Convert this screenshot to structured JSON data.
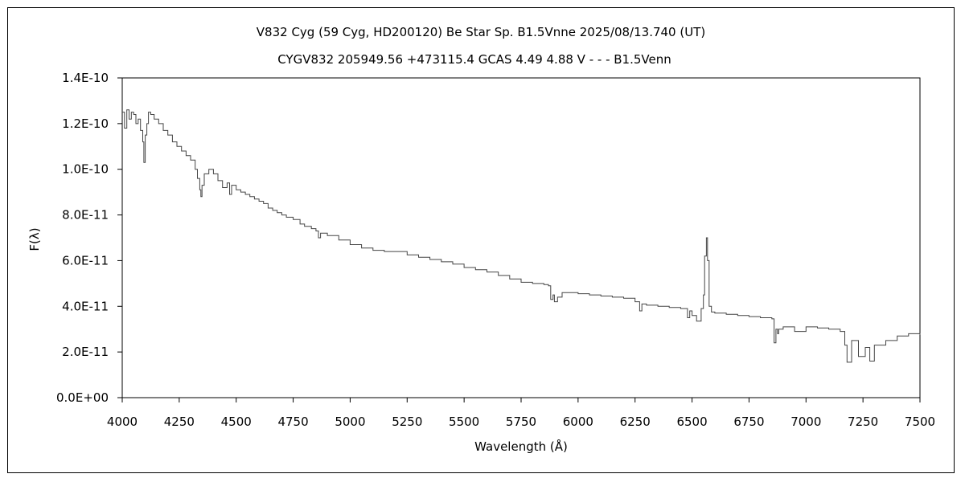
{
  "chart_data": {
    "type": "line",
    "title": "V832 Cyg (59 Cyg, HD200120)    Be Star    Sp. B1.5Vnne    2025/08/13.740 (UT)",
    "subtitle": "CYGV832 205949.56 +473115.4 GCAS 4.49 4.88 V - - - B1.5Venn",
    "xlabel": "Wavelength (Å)",
    "ylabel": "F(λ)",
    "xlim": [
      4000,
      7500
    ],
    "ylim": [
      0,
      1.4e-10
    ],
    "xticks": [
      4000,
      4250,
      4500,
      4750,
      5000,
      5250,
      5500,
      5750,
      6000,
      6250,
      6500,
      6750,
      7000,
      7250,
      7500
    ],
    "xtick_labels": [
      "4000",
      "4250",
      "4500",
      "4750",
      "5000",
      "5250",
      "5500",
      "5750",
      "6000",
      "6250",
      "6500",
      "6750",
      "7000",
      "7250",
      "7500"
    ],
    "yticks": [
      0,
      2e-11,
      4e-11,
      6e-11,
      8e-11,
      1e-10,
      1.2e-10,
      1.4e-10
    ],
    "ytick_labels": [
      "0.0E+00",
      "2.0E-11",
      "4.0E-11",
      "6.0E-11",
      "8.0E-11",
      "1.0E-10",
      "1.2E-10",
      "1.4E-10"
    ],
    "grid": false,
    "series": [
      {
        "color": "#444444",
        "x": [
          4000,
          4010,
          4020,
          4030,
          4040,
          4050,
          4060,
          4070,
          4080,
          4090,
          4095,
          4101,
          4108,
          4115,
          4125,
          4140,
          4160,
          4180,
          4200,
          4220,
          4240,
          4260,
          4280,
          4300,
          4320,
          4330,
          4340,
          4345,
          4350,
          4360,
          4380,
          4400,
          4420,
          4440,
          4460,
          4471,
          4480,
          4500,
          4520,
          4540,
          4560,
          4580,
          4600,
          4620,
          4640,
          4660,
          4680,
          4700,
          4720,
          4750,
          4780,
          4800,
          4830,
          4850,
          4861,
          4870,
          4900,
          4950,
          5000,
          5050,
          5100,
          5150,
          5200,
          5250,
          5300,
          5350,
          5400,
          5450,
          5500,
          5550,
          5600,
          5650,
          5700,
          5750,
          5800,
          5850,
          5870,
          5880,
          5890,
          5896,
          5910,
          5930,
          5950,
          6000,
          6050,
          6100,
          6150,
          6200,
          6250,
          6270,
          6280,
          6300,
          6350,
          6400,
          6450,
          6480,
          6490,
          6500,
          6520,
          6540,
          6550,
          6555,
          6563,
          6568,
          6575,
          6585,
          6600,
          6650,
          6700,
          6750,
          6800,
          6850,
          6860,
          6868,
          6875,
          6880,
          6900,
          6950,
          7000,
          7050,
          7100,
          7150,
          7170,
          7180,
          7200,
          7230,
          7260,
          7280,
          7300,
          7350,
          7400,
          7450,
          7500
        ],
        "y": [
          1.25e-10,
          1.18e-10,
          1.26e-10,
          1.22e-10,
          1.25e-10,
          1.24e-10,
          1.2e-10,
          1.22e-10,
          1.17e-10,
          1.12e-10,
          1.03e-10,
          1.15e-10,
          1.2e-10,
          1.25e-10,
          1.24e-10,
          1.22e-10,
          1.2e-10,
          1.17e-10,
          1.15e-10,
          1.12e-10,
          1.1e-10,
          1.08e-10,
          1.06e-10,
          1.04e-10,
          1e-10,
          9.6e-11,
          9.1e-11,
          8.8e-11,
          9.3e-11,
          9.8e-11,
          1e-10,
          9.8e-11,
          9.5e-11,
          9.2e-11,
          9.4e-11,
          8.9e-11,
          9.3e-11,
          9.1e-11,
          9e-11,
          8.9e-11,
          8.8e-11,
          8.7e-11,
          8.6e-11,
          8.5e-11,
          8.3e-11,
          8.2e-11,
          8.1e-11,
          8e-11,
          7.9e-11,
          7.8e-11,
          7.6e-11,
          7.5e-11,
          7.4e-11,
          7.3e-11,
          7e-11,
          7.2e-11,
          7.1e-11,
          6.9e-11,
          6.7e-11,
          6.55e-11,
          6.45e-11,
          6.4e-11,
          6.4e-11,
          6.25e-11,
          6.15e-11,
          6.05e-11,
          5.95e-11,
          5.85e-11,
          5.7e-11,
          5.6e-11,
          5.5e-11,
          5.35e-11,
          5.2e-11,
          5.05e-11,
          5e-11,
          4.95e-11,
          4.9e-11,
          4.3e-11,
          4.5e-11,
          4.2e-11,
          4.4e-11,
          4.6e-11,
          4.6e-11,
          4.55e-11,
          4.5e-11,
          4.45e-11,
          4.4e-11,
          4.35e-11,
          4.2e-11,
          3.8e-11,
          4.1e-11,
          4.05e-11,
          4e-11,
          3.95e-11,
          3.9e-11,
          3.5e-11,
          3.8e-11,
          3.6e-11,
          3.35e-11,
          3.9e-11,
          4.5e-11,
          6.2e-11,
          7e-11,
          6e-11,
          4e-11,
          3.75e-11,
          3.7e-11,
          3.65e-11,
          3.6e-11,
          3.55e-11,
          3.5e-11,
          3.45e-11,
          2.4e-11,
          3e-11,
          2.8e-11,
          3e-11,
          3.1e-11,
          2.9e-11,
          3.1e-11,
          3.05e-11,
          3e-11,
          2.9e-11,
          2.3e-11,
          1.55e-11,
          2.5e-11,
          1.8e-11,
          2.2e-11,
          1.6e-11,
          2.3e-11,
          2.5e-11,
          2.7e-11,
          2.8e-11,
          2.75e-11
        ]
      }
    ]
  }
}
